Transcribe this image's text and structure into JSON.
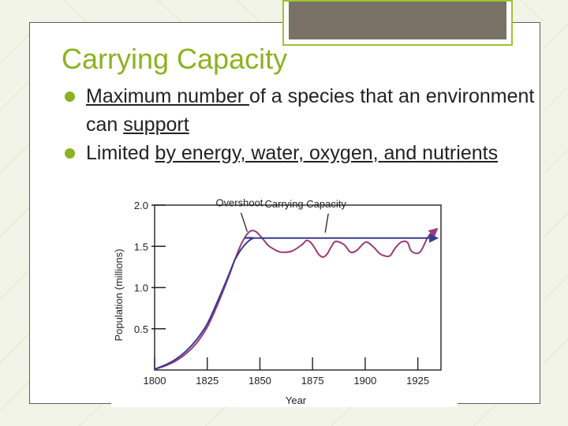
{
  "slide": {
    "title": "Carrying Capacity",
    "bullets": [
      {
        "parts": [
          {
            "text": "Maximum number ",
            "underline": true
          },
          {
            "text": "of a species that an environment can ",
            "underline": false
          },
          {
            "text": "support",
            "underline": true
          }
        ]
      },
      {
        "parts": [
          {
            "text": "Limited ",
            "underline": false
          },
          {
            "text": "by energy, water, oxygen, and nutrients",
            "underline": true
          }
        ]
      }
    ]
  },
  "colors": {
    "title": "#8bb21f",
    "bullet": "#8bb21f",
    "actual_population": "#9b3a78",
    "carrying_capacity": "#3a3a8f"
  },
  "chart_data": {
    "type": "line",
    "title": "",
    "xlabel": "Year",
    "ylabel": "Population (millions)",
    "xlim": [
      1800,
      1936
    ],
    "ylim": [
      0,
      2.0
    ],
    "xticks": [
      1800,
      1825,
      1850,
      1875,
      1900,
      1925
    ],
    "yticks": [
      0.5,
      1.0,
      1.5,
      2.0
    ],
    "ytick_labels": [
      "0.5",
      "1.0",
      "1.5",
      "2.0"
    ],
    "annotations": [
      {
        "text": "Overshoot",
        "x": 1844,
        "y": 1.62
      },
      {
        "text": "Carrying Capacity",
        "x": 1881,
        "y": 1.61
      }
    ],
    "series": [
      {
        "x": [
          1800,
          1805,
          1810,
          1815,
          1820,
          1825,
          1830,
          1835,
          1838,
          1841,
          1844,
          1846,
          1848,
          1850,
          1852,
          1854,
          1857,
          1860,
          1865,
          1870,
          1872,
          1874,
          1876,
          1878,
          1880,
          1882,
          1884,
          1886,
          1890,
          1893,
          1896,
          1899,
          1901,
          1904,
          1907,
          1910,
          1912,
          1914,
          1917,
          1920,
          1922,
          1926,
          1930,
          1934
        ],
        "y": [
          0.01,
          0.05,
          0.11,
          0.2,
          0.33,
          0.52,
          0.8,
          1.12,
          1.33,
          1.52,
          1.65,
          1.69,
          1.68,
          1.63,
          1.57,
          1.51,
          1.46,
          1.43,
          1.44,
          1.52,
          1.57,
          1.55,
          1.48,
          1.4,
          1.37,
          1.41,
          1.5,
          1.56,
          1.52,
          1.43,
          1.45,
          1.53,
          1.55,
          1.49,
          1.41,
          1.38,
          1.39,
          1.47,
          1.55,
          1.55,
          1.44,
          1.43,
          1.62,
          1.71
        ],
        "arrow": true
      },
      {
        "x": [
          1800,
          1805,
          1810,
          1815,
          1820,
          1825,
          1830,
          1835,
          1838,
          1841,
          1844,
          1847,
          1850,
          1934
        ],
        "y": [
          0.01,
          0.06,
          0.13,
          0.23,
          0.37,
          0.56,
          0.84,
          1.14,
          1.33,
          1.46,
          1.55,
          1.6,
          1.6,
          1.6
        ],
        "arrow": true
      }
    ]
  }
}
